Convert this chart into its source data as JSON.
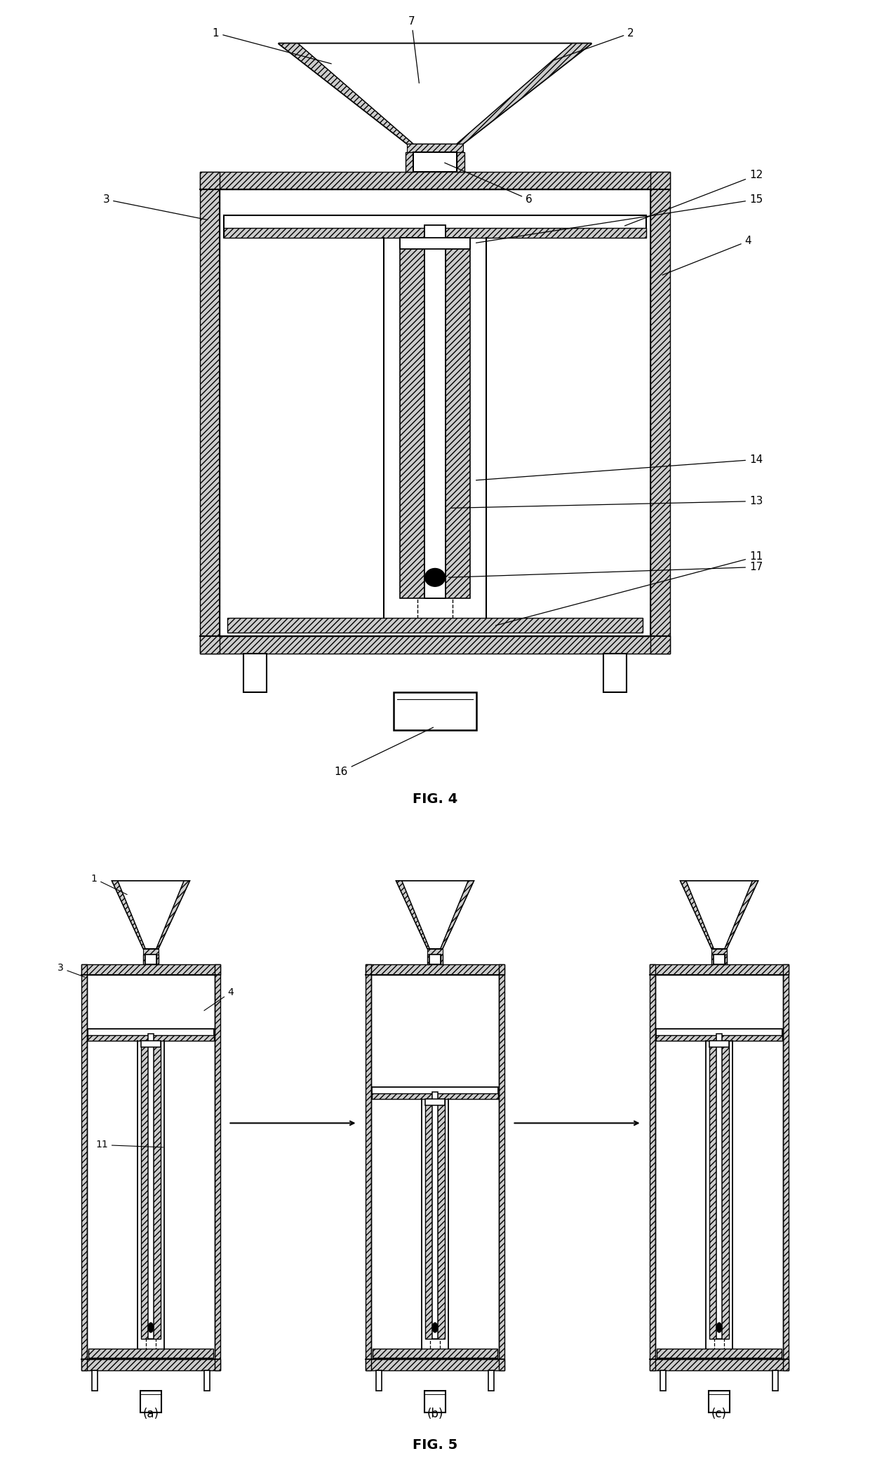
{
  "bg_color": "#ffffff",
  "line_color": "#000000",
  "fig4_title": "FIG. 4",
  "fig5_title": "FIG. 5",
  "fig5a_label": "(a)",
  "fig5b_label": "(b)",
  "fig5c_label": "(c)"
}
